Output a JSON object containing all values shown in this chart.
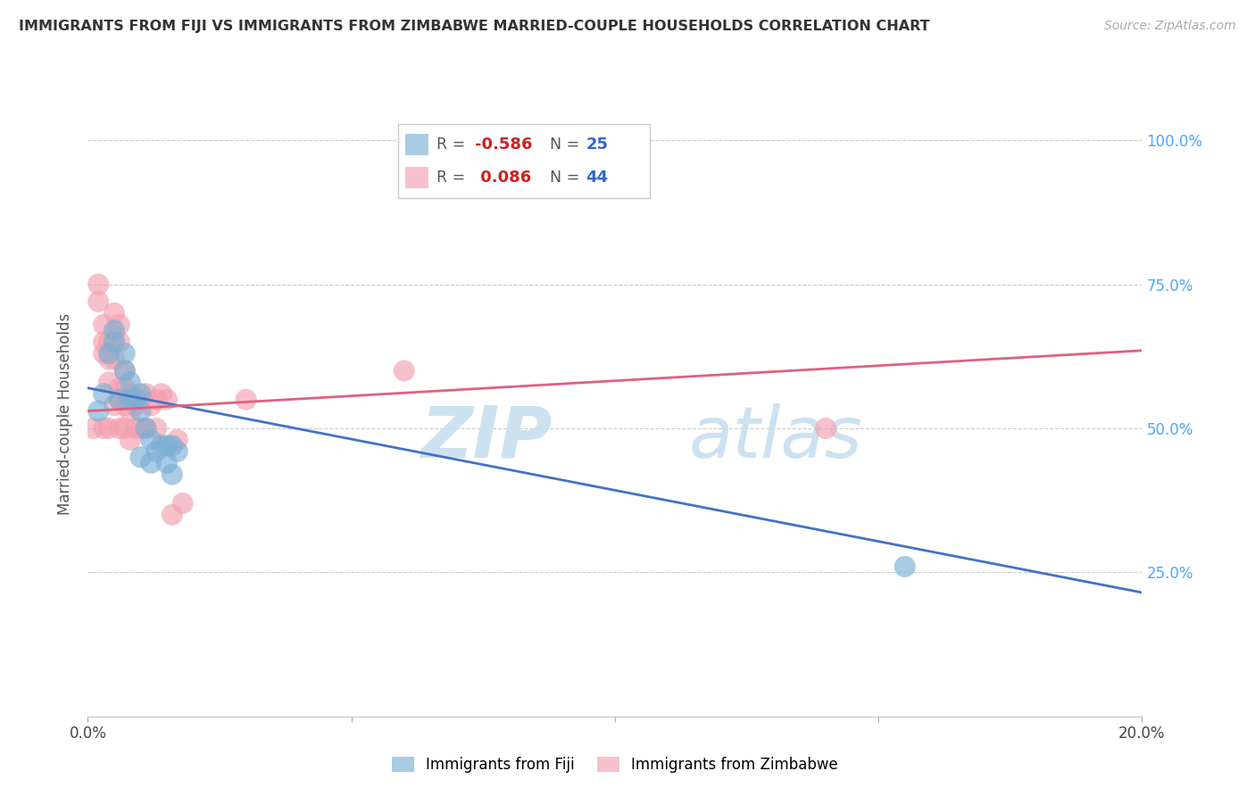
{
  "title": "IMMIGRANTS FROM FIJI VS IMMIGRANTS FROM ZIMBABWE MARRIED-COUPLE HOUSEHOLDS CORRELATION CHART",
  "source": "Source: ZipAtlas.com",
  "ylabel": "Married-couple Households",
  "xlim": [
    0.0,
    0.2
  ],
  "ylim": [
    0.0,
    1.05
  ],
  "yticks": [
    0.0,
    0.25,
    0.5,
    0.75,
    1.0
  ],
  "ytick_labels_right": [
    "",
    "25.0%",
    "50.0%",
    "75.0%",
    "100.0%"
  ],
  "xticks": [
    0.0,
    0.05,
    0.1,
    0.15,
    0.2
  ],
  "xtick_labels": [
    "0.0%",
    "",
    "",
    "",
    "20.0%"
  ],
  "fiji_color": "#7bafd4",
  "zimbabwe_color": "#f4a0b0",
  "fiji_line_color": "#4472c4",
  "zimbabwe_line_color": "#e06080",
  "fiji_R": -0.586,
  "fiji_N": 25,
  "zimbabwe_R": 0.086,
  "zimbabwe_N": 44,
  "fiji_scatter_x": [
    0.002,
    0.003,
    0.004,
    0.005,
    0.005,
    0.006,
    0.007,
    0.007,
    0.008,
    0.008,
    0.009,
    0.01,
    0.01,
    0.011,
    0.012,
    0.013,
    0.014,
    0.015,
    0.016,
    0.017,
    0.01,
    0.012,
    0.015,
    0.016,
    0.155
  ],
  "fiji_scatter_y": [
    0.53,
    0.56,
    0.63,
    0.65,
    0.67,
    0.55,
    0.6,
    0.63,
    0.55,
    0.58,
    0.55,
    0.53,
    0.56,
    0.5,
    0.48,
    0.46,
    0.47,
    0.47,
    0.42,
    0.46,
    0.45,
    0.44,
    0.44,
    0.47,
    0.26
  ],
  "zimbabwe_scatter_x": [
    0.001,
    0.002,
    0.002,
    0.003,
    0.003,
    0.003,
    0.003,
    0.004,
    0.004,
    0.004,
    0.004,
    0.005,
    0.005,
    0.005,
    0.005,
    0.006,
    0.006,
    0.006,
    0.006,
    0.006,
    0.007,
    0.007,
    0.007,
    0.007,
    0.008,
    0.008,
    0.008,
    0.009,
    0.009,
    0.01,
    0.01,
    0.011,
    0.011,
    0.012,
    0.013,
    0.013,
    0.014,
    0.015,
    0.016,
    0.017,
    0.018,
    0.03,
    0.06,
    0.14
  ],
  "zimbabwe_scatter_y": [
    0.5,
    0.75,
    0.72,
    0.68,
    0.65,
    0.63,
    0.5,
    0.65,
    0.62,
    0.58,
    0.5,
    0.7,
    0.66,
    0.62,
    0.54,
    0.68,
    0.65,
    0.57,
    0.55,
    0.5,
    0.6,
    0.57,
    0.54,
    0.5,
    0.56,
    0.53,
    0.48,
    0.54,
    0.5,
    0.55,
    0.5,
    0.56,
    0.5,
    0.54,
    0.55,
    0.5,
    0.56,
    0.55,
    0.35,
    0.48,
    0.37,
    0.55,
    0.6,
    0.5
  ],
  "fiji_line_x": [
    0.0,
    0.2
  ],
  "fiji_line_y": [
    0.57,
    0.215
  ],
  "zimbabwe_line_x": [
    0.0,
    0.2
  ],
  "zimbabwe_line_y": [
    0.53,
    0.635
  ],
  "legend_fiji_label": "R = -0.586   N = 25",
  "legend_zim_label": "R =  0.086   N = 44",
  "bottom_legend_fiji": "Immigrants from Fiji",
  "bottom_legend_zim": "Immigrants from Zimbabwe",
  "right_axis_color": "#4da6ff",
  "watermark_zip_color": "#c8dff0",
  "watermark_atlas_color": "#c8dff0"
}
